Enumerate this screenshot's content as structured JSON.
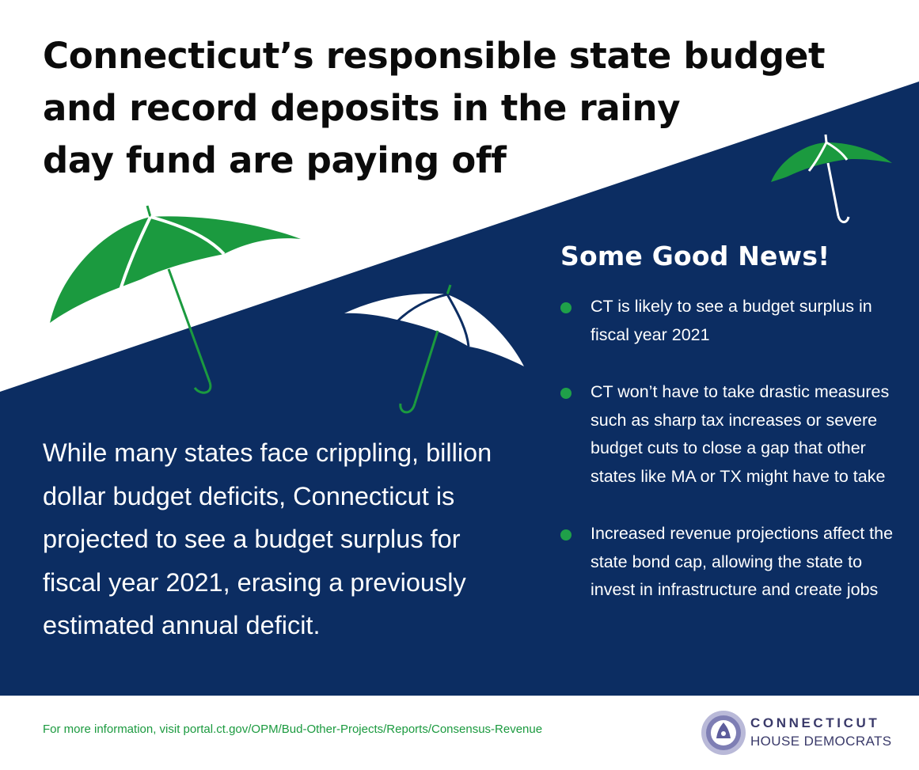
{
  "title": {
    "line1": "Connecticut’s responsible state budget",
    "line2": "and record deposits in the rainy",
    "line3": "day fund are paying off"
  },
  "good_news": {
    "heading": "Some Good News!",
    "items": [
      {
        "text": "CT is likely to see a budget surplus in  fiscal year 2021"
      },
      {
        "text": "CT won’t have to take drastic measures such as sharp tax increases or severe budget cuts to close a gap that other states like MA or TX might have to take"
      },
      {
        "text": "Increased revenue projections affect the state bond cap, allowing the state to invest in infrastructure and create jobs"
      }
    ]
  },
  "main_text": "While many states face crippling, billion dollar budget deficits, Connecticut is projected to see a budget surplus for fiscal year 2021, erasing a previously estimated annual deficit.",
  "footer": {
    "link_text": "For more information, visit portal.ct.gov/OPM/Bud-Other-Projects/Reports/Consensus-Revenue"
  },
  "logo": {
    "line1": "CONNECTICUT",
    "line2": "HOUSE DEMOCRATS"
  },
  "colors": {
    "navy": "#0c2d62",
    "green": "#1b9a3f",
    "white": "#ffffff"
  },
  "icons": [
    "umbrella-icon",
    "seal-icon",
    "bullet-icon"
  ]
}
